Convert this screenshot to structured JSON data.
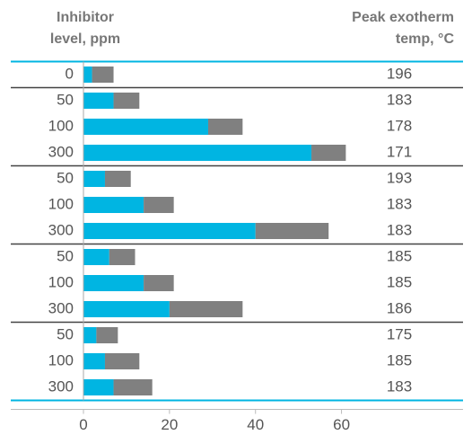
{
  "chart_data": {
    "type": "bar",
    "orientation": "horizontal",
    "stacked": true,
    "column_headers": [
      [
        "Inhibitor",
        "level, ppm"
      ],
      [
        "Peak exotherm",
        "temp, °C"
      ]
    ],
    "colors": [
      "#00b5e2",
      "#808080"
    ],
    "groups": [
      {
        "categories": [
          "0"
        ],
        "series": [
          {
            "values": [
              2
            ]
          },
          {
            "values": [
              5
            ]
          }
        ],
        "temps": [
          196
        ]
      },
      {
        "categories": [
          "50",
          "100",
          "300"
        ],
        "series": [
          {
            "values": [
              7,
              29,
              53
            ]
          },
          {
            "values": [
              6,
              8,
              8
            ]
          }
        ],
        "temps": [
          183,
          178,
          171
        ]
      },
      {
        "categories": [
          "50",
          "100",
          "300"
        ],
        "series": [
          {
            "values": [
              5,
              14,
              40
            ]
          },
          {
            "values": [
              6,
              7,
              17
            ]
          }
        ],
        "temps": [
          193,
          183,
          183
        ]
      },
      {
        "categories": [
          "50",
          "100",
          "300"
        ],
        "series": [
          {
            "values": [
              6,
              14,
              20
            ]
          },
          {
            "values": [
              6,
              7,
              17
            ]
          }
        ],
        "temps": [
          185,
          185,
          186
        ]
      },
      {
        "categories": [
          "50",
          "100",
          "300"
        ],
        "series": [
          {
            "values": [
              3,
              5,
              7
            ]
          },
          {
            "values": [
              5,
              8,
              9
            ]
          }
        ],
        "temps": [
          175,
          185,
          183
        ]
      }
    ],
    "xlim": [
      0,
      87
    ],
    "xticks": [
      0,
      20,
      40,
      60
    ]
  }
}
